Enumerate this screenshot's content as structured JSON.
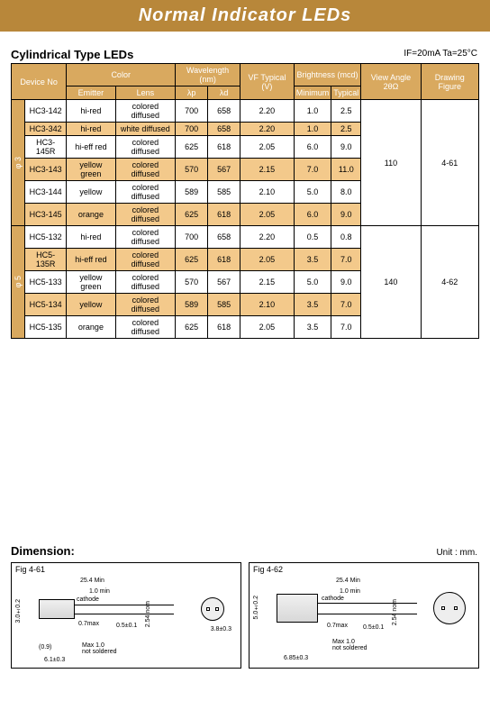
{
  "header": {
    "title": "Normal Indicator LEDs"
  },
  "section": {
    "title": "Cylindrical Type LEDs"
  },
  "conditions": {
    "text": "IF=20mA   Ta=25°C"
  },
  "columns": {
    "device": "Device  No",
    "color": "Color",
    "emitter": "Emitter",
    "lens": "Lens",
    "wavelength": "Wavelength  (nm)",
    "lp": "λp",
    "ld": "λd",
    "vf": "VF Typical (V)",
    "brightness": "Brightness (mcd)",
    "bmin": "Minimum",
    "btyp": "Typical",
    "angle": "View Angle 2θΩ",
    "drawing": "Drawing Figure"
  },
  "groups": [
    {
      "phi": "φ 3",
      "angle": "110",
      "drawing": "4-61",
      "rows": [
        {
          "hl": false,
          "device": "HC3-142",
          "emitter": "hi-red",
          "lens": "colored diffused",
          "lp": "700",
          "ld": "658",
          "vf": "2.20",
          "bmin": "1.0",
          "btyp": "2.5"
        },
        {
          "hl": true,
          "device": "HC3-342",
          "emitter": "hi-red",
          "lens": "white diffused",
          "lp": "700",
          "ld": "658",
          "vf": "2.20",
          "bmin": "1.0",
          "btyp": "2.5"
        },
        {
          "hl": false,
          "device": "HC3-145R",
          "emitter": "hi-eff red",
          "lens": "colored diffused",
          "lp": "625",
          "ld": "618",
          "vf": "2.05",
          "bmin": "6.0",
          "btyp": "9.0"
        },
        {
          "hl": true,
          "device": "HC3-143",
          "emitter": "yellow green",
          "lens": "colored diffused",
          "lp": "570",
          "ld": "567",
          "vf": "2.15",
          "bmin": "7.0",
          "btyp": "11.0"
        },
        {
          "hl": false,
          "device": "HC3-144",
          "emitter": "yellow",
          "lens": "colored diffused",
          "lp": "589",
          "ld": "585",
          "vf": "2.10",
          "bmin": "5.0",
          "btyp": "8.0"
        },
        {
          "hl": true,
          "device": "HC3-145",
          "emitter": "orange",
          "lens": "colored diffused",
          "lp": "625",
          "ld": "618",
          "vf": "2.05",
          "bmin": "6.0",
          "btyp": "9.0"
        }
      ]
    },
    {
      "phi": "φ 5",
      "angle": "140",
      "drawing": "4-62",
      "rows": [
        {
          "hl": false,
          "device": "HC5-132",
          "emitter": "hi-red",
          "lens": "colored diffused",
          "lp": "700",
          "ld": "658",
          "vf": "2.20",
          "bmin": "0.5",
          "btyp": "0.8"
        },
        {
          "hl": true,
          "device": "HC5-135R",
          "emitter": "hi-eff red",
          "lens": "colored diffused",
          "lp": "625",
          "ld": "618",
          "vf": "2.05",
          "bmin": "3.5",
          "btyp": "7.0"
        },
        {
          "hl": false,
          "device": "HC5-133",
          "emitter": "yellow green",
          "lens": "colored diffused",
          "lp": "570",
          "ld": "567",
          "vf": "2.15",
          "bmin": "5.0",
          "btyp": "9.0"
        },
        {
          "hl": true,
          "device": "HC5-134",
          "emitter": "yellow",
          "lens": "colored diffused",
          "lp": "589",
          "ld": "585",
          "vf": "2.10",
          "bmin": "3.5",
          "btyp": "7.0"
        },
        {
          "hl": false,
          "device": "HC5-135",
          "emitter": "orange",
          "lens": "colored diffused",
          "lp": "625",
          "ld": "618",
          "vf": "2.05",
          "bmin": "3.5",
          "btyp": "7.0"
        }
      ]
    }
  ],
  "dimension": {
    "title": "Dimension:",
    "unit": "Unit : mm.",
    "figs": [
      {
        "label": "Fig 4-61",
        "len_min": "25.4  Min",
        "min1": "1.0 min",
        "cathode": "cathode",
        "t254": "2.54 nom",
        "max07": "0.7max",
        "d05": "0.5±0.1",
        "h": "3.0±0.2",
        "paren": "(0.9)",
        "max1": "Max 1.0\nnot soldered",
        "base": "6.1±0.3",
        "circle": "3.8±0.3"
      },
      {
        "label": "Fig 4-62",
        "len_min": "25.4  Min",
        "min1": "1.0 min",
        "cathode": "cathode",
        "t254": "2.54 nom",
        "max07": "0.7max",
        "d05": "0.5±0.1",
        "h": "5.0±0.2",
        "max1": "Max 1.0\nnot soldered",
        "base": "6.85±0.3",
        "circle": ""
      }
    ]
  }
}
